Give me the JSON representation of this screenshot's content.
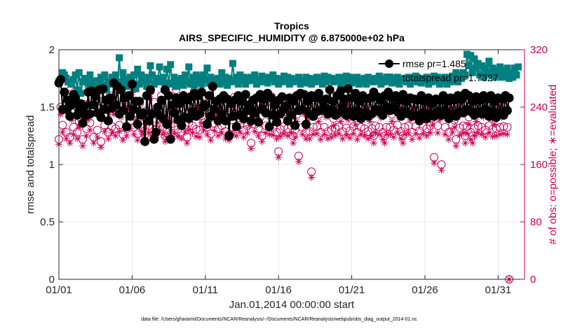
{
  "chart_data": {
    "type": "line",
    "title": "Tropics",
    "subtitle": "AIRS_SPECIFIC_HUMIDITY @ 6.875000e+02 hPa",
    "xlabel": "Jan.01,2014 00:00:00 start",
    "ylabel": "rmse and totalspread",
    "ylabel_right": "# of obs: o=possible; ∗=evaluated",
    "footnote": "data file: /Users/gharamti/Documents/NCAR/Reanalysis/~/Documents/NCAR/Reanalysis/webpub/obs_diag_output_2014-01.nc",
    "xlim": [
      0,
      31.8
    ],
    "ylim": [
      0,
      2
    ],
    "ylim_right": [
      0,
      320
    ],
    "x_ticks": [
      0,
      5,
      10,
      15,
      20,
      25,
      30
    ],
    "x_tick_labels": [
      "01/01",
      "01/06",
      "01/11",
      "01/16",
      "01/21",
      "01/26",
      "01/31"
    ],
    "y_ticks": [
      0,
      0.5,
      1,
      1.5,
      2
    ],
    "y_tick_labels": [
      "0",
      "0.5",
      "1",
      "1.5",
      "2"
    ],
    "y_right_ticks": [
      0,
      80,
      160,
      240,
      320
    ],
    "y_right_tick_labels": [
      "0",
      "80",
      "160",
      "240",
      "320"
    ],
    "grid": true,
    "legend_position": "top-right",
    "series": [
      {
        "name": "rmse pr=1.485",
        "axis": "left",
        "color": "#000000",
        "marker": "circle",
        "start": 0.0,
        "step": 0.125,
        "values": [
          1.71,
          1.74,
          1.48,
          1.63,
          1.48,
          1.56,
          1.42,
          1.52,
          1.61,
          1.58,
          1.43,
          1.47,
          1.53,
          1.36,
          1.51,
          1.43,
          1.63,
          1.44,
          1.64,
          1.52,
          1.6,
          1.45,
          1.65,
          1.41,
          1.66,
          1.48,
          1.56,
          1.38,
          1.58,
          1.49,
          1.71,
          1.52,
          1.68,
          1.44,
          1.65,
          1.47,
          1.58,
          1.33,
          1.6,
          1.42,
          1.7,
          1.48,
          1.55,
          1.35,
          1.55,
          1.43,
          1.45,
          1.2,
          1.6,
          1.38,
          1.65,
          1.44,
          1.22,
          1.28,
          1.5,
          1.43,
          1.56,
          1.4,
          1.65,
          1.35,
          1.6,
          1.22,
          1.52,
          1.45,
          1.58,
          1.39,
          1.53,
          1.34,
          1.6,
          1.41,
          1.56,
          1.4,
          1.59,
          1.46,
          1.62,
          1.42,
          1.6,
          1.44,
          1.63,
          1.5,
          1.52,
          1.35,
          1.6,
          1.42,
          1.68,
          1.48,
          1.55,
          1.38,
          1.57,
          1.44,
          1.6,
          1.38,
          1.57,
          1.25,
          1.53,
          1.42,
          1.56,
          1.33,
          1.6,
          1.43,
          1.55,
          1.4,
          1.61,
          1.47,
          1.52,
          1.38,
          1.56,
          1.45,
          1.58,
          1.37,
          1.61,
          1.48,
          1.57,
          1.45,
          1.62,
          1.33,
          1.58,
          1.43,
          1.52,
          1.37,
          1.56,
          1.44,
          1.59,
          1.48,
          1.51,
          1.38,
          1.58,
          1.43,
          1.55,
          1.34,
          1.6,
          1.47,
          1.62,
          1.48,
          1.61,
          1.35,
          1.55,
          1.44,
          1.6,
          1.42,
          1.58,
          1.46,
          1.62,
          1.47,
          1.56,
          1.5,
          1.57,
          1.44,
          1.65,
          1.48,
          1.55,
          1.43,
          1.6,
          1.45,
          1.64,
          1.5,
          1.57,
          1.43,
          1.66,
          1.46,
          1.58,
          1.42,
          1.62,
          1.47,
          1.55,
          1.4,
          1.6,
          1.45,
          1.57,
          1.42,
          1.58,
          1.44,
          1.63,
          1.48,
          1.59,
          1.46,
          1.56,
          1.43,
          1.6,
          1.5,
          1.63,
          1.47,
          1.58,
          1.5,
          1.6,
          1.46,
          1.56,
          1.42,
          1.61,
          1.46,
          1.55,
          1.44,
          1.58,
          1.42,
          1.57,
          1.43,
          1.56,
          1.38,
          1.6,
          1.45,
          1.55,
          1.4,
          1.58,
          1.44,
          1.53,
          1.42,
          1.57,
          1.46,
          1.56,
          1.43,
          1.6,
          1.47,
          1.55,
          1.4,
          1.58,
          1.44,
          1.56,
          1.42,
          1.6,
          1.46,
          1.57,
          1.45,
          1.62,
          1.48,
          1.6,
          1.46,
          1.55,
          1.43,
          1.59,
          1.46,
          1.56,
          1.44,
          1.6,
          1.48,
          1.57,
          1.42,
          1.6,
          1.46,
          1.55,
          1.41,
          1.58,
          1.45,
          1.57,
          1.43,
          1.6,
          1.47,
          1.58
        ]
      },
      {
        "name": "totalspread pr=1.7327",
        "axis": "left",
        "color": "#008080",
        "marker": "square",
        "start": 0.0,
        "step": 0.125,
        "values": [
          1.72,
          1.74,
          1.8,
          1.78,
          1.75,
          1.72,
          1.72,
          1.7,
          1.74,
          1.78,
          1.65,
          1.8,
          1.62,
          1.72,
          1.75,
          1.73,
          1.7,
          1.78,
          1.67,
          1.72,
          1.68,
          1.73,
          1.7,
          1.76,
          1.69,
          1.78,
          1.65,
          1.72,
          1.7,
          1.76,
          1.75,
          1.78,
          1.7,
          1.93,
          1.72,
          1.8,
          1.74,
          1.7,
          1.68,
          1.76,
          1.69,
          1.78,
          1.66,
          1.83,
          1.7,
          1.78,
          1.72,
          1.76,
          1.68,
          1.74,
          1.86,
          1.78,
          1.7,
          1.72,
          1.75,
          1.85,
          1.72,
          1.76,
          1.68,
          1.83,
          1.71,
          1.87,
          1.7,
          1.76,
          1.68,
          1.73,
          1.7,
          1.75,
          1.69,
          1.78,
          1.72,
          1.85,
          1.7,
          1.76,
          1.69,
          1.78,
          1.72,
          1.76,
          1.7,
          1.78,
          1.74,
          1.84,
          1.71,
          1.76,
          1.68,
          1.74,
          1.72,
          1.75,
          1.7,
          1.8,
          1.72,
          1.76,
          1.69,
          1.75,
          1.72,
          1.88,
          1.73,
          1.76,
          1.7,
          1.78,
          1.73,
          1.76,
          1.7,
          1.75,
          1.73,
          1.76,
          1.74,
          1.78,
          1.7,
          1.74,
          1.72,
          1.77,
          1.73,
          1.75,
          1.71,
          1.76,
          1.74,
          1.78,
          1.72,
          1.75,
          1.7,
          1.74,
          1.72,
          1.77,
          1.73,
          1.76,
          1.7,
          1.75,
          1.72,
          1.74,
          1.73,
          1.76,
          1.7,
          1.73,
          1.72,
          1.76,
          1.71,
          1.75,
          1.7,
          1.74,
          1.72,
          1.76,
          1.73,
          1.75,
          1.7,
          1.77,
          1.72,
          1.76,
          1.74,
          1.75,
          1.72,
          1.74,
          1.73,
          1.76,
          1.7,
          1.75,
          1.72,
          1.77,
          1.74,
          1.76,
          1.71,
          1.75,
          1.73,
          1.76,
          1.7,
          1.74,
          1.72,
          1.75,
          1.7,
          1.76,
          1.73,
          1.74,
          1.72,
          1.75,
          1.73,
          1.77,
          1.7,
          1.74,
          1.72,
          1.76,
          1.73,
          1.74,
          1.71,
          1.75,
          1.72,
          1.76,
          1.7,
          1.74,
          1.73,
          1.75,
          1.72,
          1.76,
          1.7,
          1.74,
          1.73,
          1.77,
          1.72,
          1.75,
          1.71,
          1.74,
          1.73,
          1.76,
          1.7,
          1.75,
          1.72,
          1.77,
          1.73,
          1.76,
          1.7,
          1.74,
          1.72,
          1.76,
          1.7,
          1.75,
          1.72,
          1.77,
          1.74,
          1.8,
          1.72,
          1.78,
          1.75,
          1.8,
          1.78,
          1.96,
          1.86,
          1.95,
          1.8,
          1.92,
          1.84,
          1.88,
          1.78,
          1.86,
          1.76,
          1.84,
          1.8,
          1.9,
          1.78,
          1.84,
          1.76,
          1.82,
          1.78,
          1.85,
          1.76,
          1.82,
          1.77,
          1.84,
          1.75,
          1.8,
          1.76,
          1.84,
          1.78,
          1.85
        ]
      },
      {
        "name": "obs possible",
        "axis": "right",
        "color": "#cc0055",
        "marker": "open-circle",
        "start": 0.0,
        "step": 0.125,
        "values": [
          195,
          240,
          215,
          270,
          205,
          258,
          198,
          232,
          212,
          262,
          205,
          220,
          225,
          195,
          244,
          210,
          232,
          218,
          252,
          198,
          262,
          208,
          238,
          192,
          248,
          215,
          230,
          205,
          256,
          213,
          240,
          210,
          272,
          215,
          235,
          202,
          250,
          210,
          246,
          220,
          270,
          212,
          232,
          203,
          244,
          216,
          212,
          202,
          235,
          214,
          262,
          210,
          247,
          208,
          228,
          218,
          256,
          212,
          200,
          208,
          232,
          216,
          242,
          213,
          264,
          209,
          230,
          205,
          238,
          215,
          198,
          218,
          240,
          214,
          262,
          209,
          248,
          208,
          228,
          218,
          255,
          212,
          230,
          203,
          244,
          217,
          238,
          210,
          252,
          214,
          232,
          206,
          247,
          202,
          235,
          212,
          254,
          210,
          240,
          215,
          230,
          208,
          250,
          214,
          224,
          190,
          242,
          216,
          236,
          210,
          226,
          200,
          246,
          214,
          238,
          212,
          255,
          211,
          230,
          205,
          178,
          209,
          245,
          213,
          234,
          210,
          247,
          214,
          200,
          208,
          230,
          172,
          245,
          212,
          240,
          205,
          232,
          206,
          150,
          212,
          240,
          213,
          230,
          205,
          250,
          212,
          236,
          206,
          242,
          208,
          224,
          211,
          247,
          213,
          230,
          206,
          240,
          211,
          232,
          207,
          245,
          213,
          225,
          205,
          242,
          212,
          232,
          210,
          248,
          206,
          230,
          210,
          200,
          214,
          240,
          212,
          235,
          205,
          200,
          212,
          250,
          212,
          230,
          208,
          244,
          215,
          235,
          206,
          200,
          212,
          242,
          214,
          232,
          205,
          246,
          213,
          236,
          207,
          240,
          213,
          232,
          210,
          246,
          214,
          225,
          170,
          242,
          214,
          232,
          160,
          248,
          212,
          238,
          205,
          245,
          215,
          222,
          195,
          236,
          211,
          240,
          214,
          200,
          213,
          226,
          205,
          200,
          210,
          230,
          214,
          244,
          212,
          236,
          208,
          242,
          214,
          233,
          209,
          226,
          210,
          248,
          212,
          236,
          213,
          240,
          212,
          0
        ]
      },
      {
        "name": "obs evaluated",
        "axis": "right",
        "color": "#cc0055",
        "marker": "asterisk",
        "start": 0.0,
        "step": 0.125,
        "values": [
          188,
          230,
          205,
          262,
          196,
          248,
          190,
          222,
          202,
          252,
          196,
          212,
          216,
          186,
          234,
          200,
          222,
          208,
          242,
          190,
          252,
          198,
          228,
          184,
          238,
          206,
          220,
          196,
          246,
          204,
          230,
          200,
          262,
          206,
          226,
          194,
          240,
          200,
          236,
          210,
          260,
          202,
          222,
          194,
          234,
          206,
          202,
          194,
          225,
          204,
          252,
          200,
          237,
          198,
          218,
          208,
          246,
          202,
          192,
          198,
          222,
          206,
          232,
          203,
          254,
          199,
          220,
          196,
          228,
          205,
          190,
          208,
          230,
          204,
          252,
          199,
          238,
          198,
          218,
          208,
          245,
          202,
          220,
          194,
          234,
          207,
          228,
          200,
          242,
          204,
          222,
          196,
          237,
          194,
          225,
          202,
          244,
          200,
          230,
          205,
          220,
          198,
          240,
          204,
          214,
          182,
          232,
          206,
          226,
          200,
          216,
          192,
          236,
          204,
          228,
          202,
          245,
          201,
          220,
          196,
          170,
          199,
          235,
          203,
          224,
          200,
          237,
          204,
          190,
          198,
          220,
          164,
          235,
          202,
          230,
          196,
          222,
          196,
          142,
          202,
          230,
          203,
          220,
          195,
          240,
          202,
          226,
          196,
          232,
          198,
          214,
          201,
          237,
          203,
          220,
          196,
          230,
          201,
          222,
          197,
          235,
          203,
          215,
          195,
          232,
          202,
          222,
          200,
          238,
          196,
          220,
          200,
          190,
          204,
          230,
          202,
          225,
          195,
          190,
          202,
          240,
          202,
          220,
          198,
          234,
          205,
          225,
          196,
          190,
          202,
          232,
          204,
          222,
          195,
          236,
          203,
          226,
          197,
          230,
          203,
          222,
          200,
          236,
          204,
          215,
          162,
          232,
          204,
          222,
          152,
          238,
          202,
          228,
          195,
          235,
          205,
          212,
          186,
          226,
          201,
          230,
          204,
          190,
          203,
          216,
          195,
          190,
          200,
          220,
          204,
          234,
          202,
          226,
          198,
          232,
          204,
          223,
          199,
          216,
          200,
          238,
          202,
          226,
          203,
          230,
          202,
          0
        ]
      }
    ]
  }
}
